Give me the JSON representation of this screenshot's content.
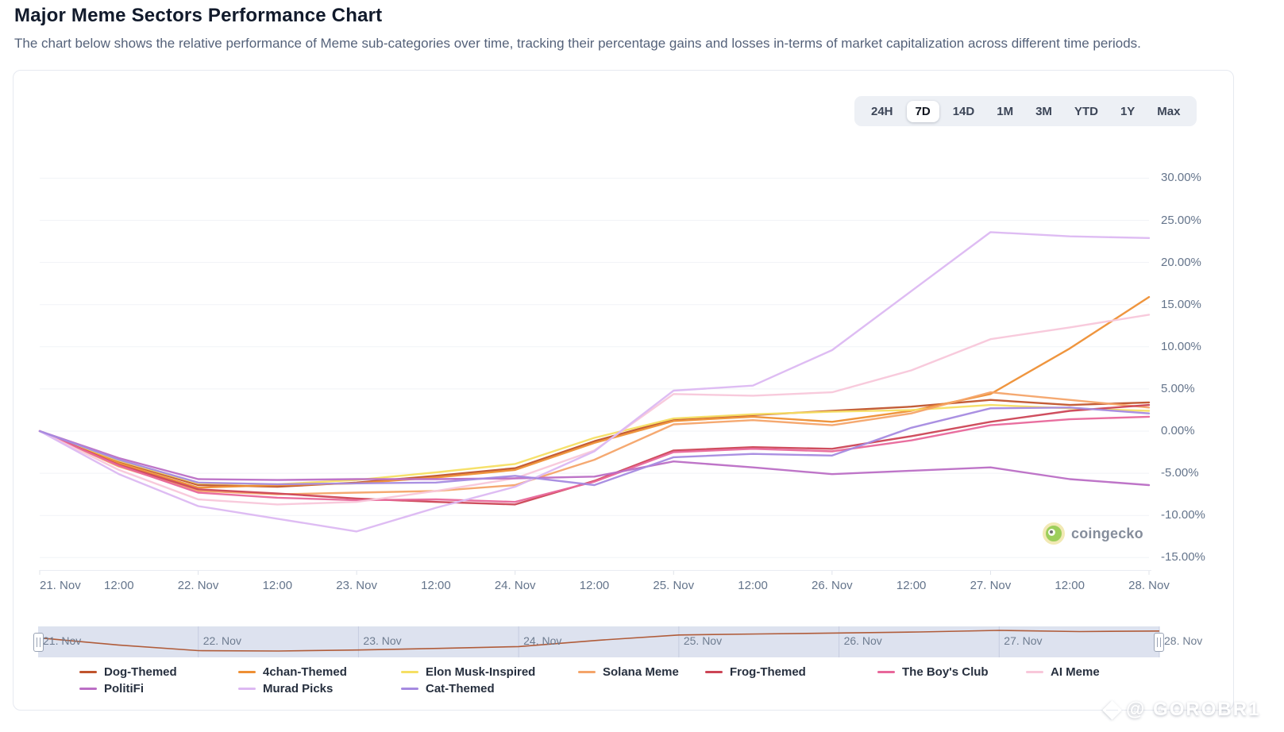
{
  "page": {
    "title": "Major Meme Sectors Performance Chart",
    "subtitle": "The chart below shows the relative performance of Meme sub-categories over time, tracking their percentage gains and losses in-terms of market capitalization across different time periods."
  },
  "range_selector": {
    "options": [
      "24H",
      "7D",
      "14D",
      "1M",
      "3M",
      "YTD",
      "1Y",
      "Max"
    ],
    "active": "7D"
  },
  "watermark": {
    "coingecko_label": "coingecko",
    "site_credit": "@ GOROBR1"
  },
  "navigator": {
    "labels": [
      "21. Nov",
      "22. Nov",
      "23. Nov",
      "24. Nov",
      "25. Nov",
      "26. Nov",
      "27. Nov",
      "28. Nov"
    ],
    "series_shown": "Dog-Themed"
  },
  "chart_data": {
    "type": "line",
    "title": "Major Meme Sectors Performance Chart",
    "xlabel": "",
    "ylabel": "",
    "ylim": [
      -15,
      30
    ],
    "y_tick_step": 5,
    "y_tick_labels": [
      "30.00%",
      "25.00%",
      "20.00%",
      "15.00%",
      "10.00%",
      "5.00%",
      "0.00%",
      "-5.00%",
      "-10.00%",
      "-15.00%"
    ],
    "grid": "horizontal-only",
    "legend_position": "bottom",
    "x": [
      "21. Nov",
      "12:00",
      "22. Nov",
      "12:00",
      "23. Nov",
      "12:00",
      "24. Nov",
      "12:00",
      "25. Nov",
      "12:00",
      "26. Nov",
      "12:00",
      "27. Nov",
      "12:00",
      "28. Nov"
    ],
    "unit": "percent",
    "series": [
      {
        "name": "Dog-Themed",
        "color": "#c0542c",
        "values": [
          0,
          -3.6,
          -6.4,
          -6.6,
          -6.1,
          -5.3,
          -4.4,
          -1.2,
          1.4,
          1.9,
          2.4,
          2.9,
          3.7,
          3.1,
          3.4
        ]
      },
      {
        "name": "4chan-Themed",
        "color": "#ee8f34",
        "values": [
          0,
          -3.8,
          -6.7,
          -6.4,
          -6.2,
          -5.5,
          -4.6,
          -1.4,
          1.2,
          1.7,
          1.1,
          2.4,
          4.4,
          9.8,
          15.9
        ]
      },
      {
        "name": "Elon Musk-Inspired",
        "color": "#f5df63",
        "values": [
          0,
          -3.5,
          -6.2,
          -6.3,
          -5.8,
          -4.9,
          -3.9,
          -0.8,
          1.5,
          2.0,
          2.3,
          2.5,
          3.1,
          2.7,
          2.4
        ]
      },
      {
        "name": "Solana Meme",
        "color": "#f4a469",
        "values": [
          0,
          -4.2,
          -7.1,
          -7.5,
          -7.3,
          -7.1,
          -6.4,
          -3.4,
          0.8,
          1.3,
          0.7,
          2.1,
          4.6,
          3.7,
          2.8
        ]
      },
      {
        "name": "Frog-Themed",
        "color": "#cc4455",
        "values": [
          0,
          -4.0,
          -6.9,
          -7.4,
          -8.0,
          -8.4,
          -8.7,
          -5.9,
          -2.3,
          -1.9,
          -2.1,
          -0.6,
          1.1,
          2.4,
          3.1
        ]
      },
      {
        "name": "The Boy's Club",
        "color": "#e8679a",
        "values": [
          0,
          -4.1,
          -7.3,
          -7.9,
          -8.2,
          -8.1,
          -8.4,
          -6.0,
          -2.5,
          -2.1,
          -2.4,
          -1.1,
          0.7,
          1.4,
          1.7
        ]
      },
      {
        "name": "AI Meme",
        "color": "#f8c7da",
        "values": [
          0,
          -4.6,
          -8.1,
          -8.7,
          -8.4,
          -7.1,
          -5.6,
          -2.3,
          4.4,
          4.2,
          4.6,
          7.2,
          10.9,
          12.3,
          13.8
        ]
      },
      {
        "name": "PolitiFi",
        "color": "#bb6ec5",
        "values": [
          0,
          -3.2,
          -5.7,
          -5.8,
          -5.7,
          -5.7,
          -5.6,
          -5.4,
          -3.6,
          -4.3,
          -5.1,
          -4.7,
          -4.3,
          -5.7,
          -6.4
        ]
      },
      {
        "name": "Murad Picks",
        "color": "#dcb8f2",
        "values": [
          0,
          -5.1,
          -8.9,
          -10.4,
          -11.9,
          -9.1,
          -6.6,
          -2.4,
          4.8,
          5.4,
          9.6,
          16.6,
          23.6,
          23.1,
          22.9
        ]
      },
      {
        "name": "Cat-Themed",
        "color": "#a58ae0",
        "values": [
          0,
          -3.4,
          -6.1,
          -6.3,
          -6.2,
          -6.1,
          -5.3,
          -6.4,
          -3.1,
          -2.7,
          -2.9,
          0.4,
          2.7,
          2.8,
          2.1
        ]
      }
    ]
  }
}
